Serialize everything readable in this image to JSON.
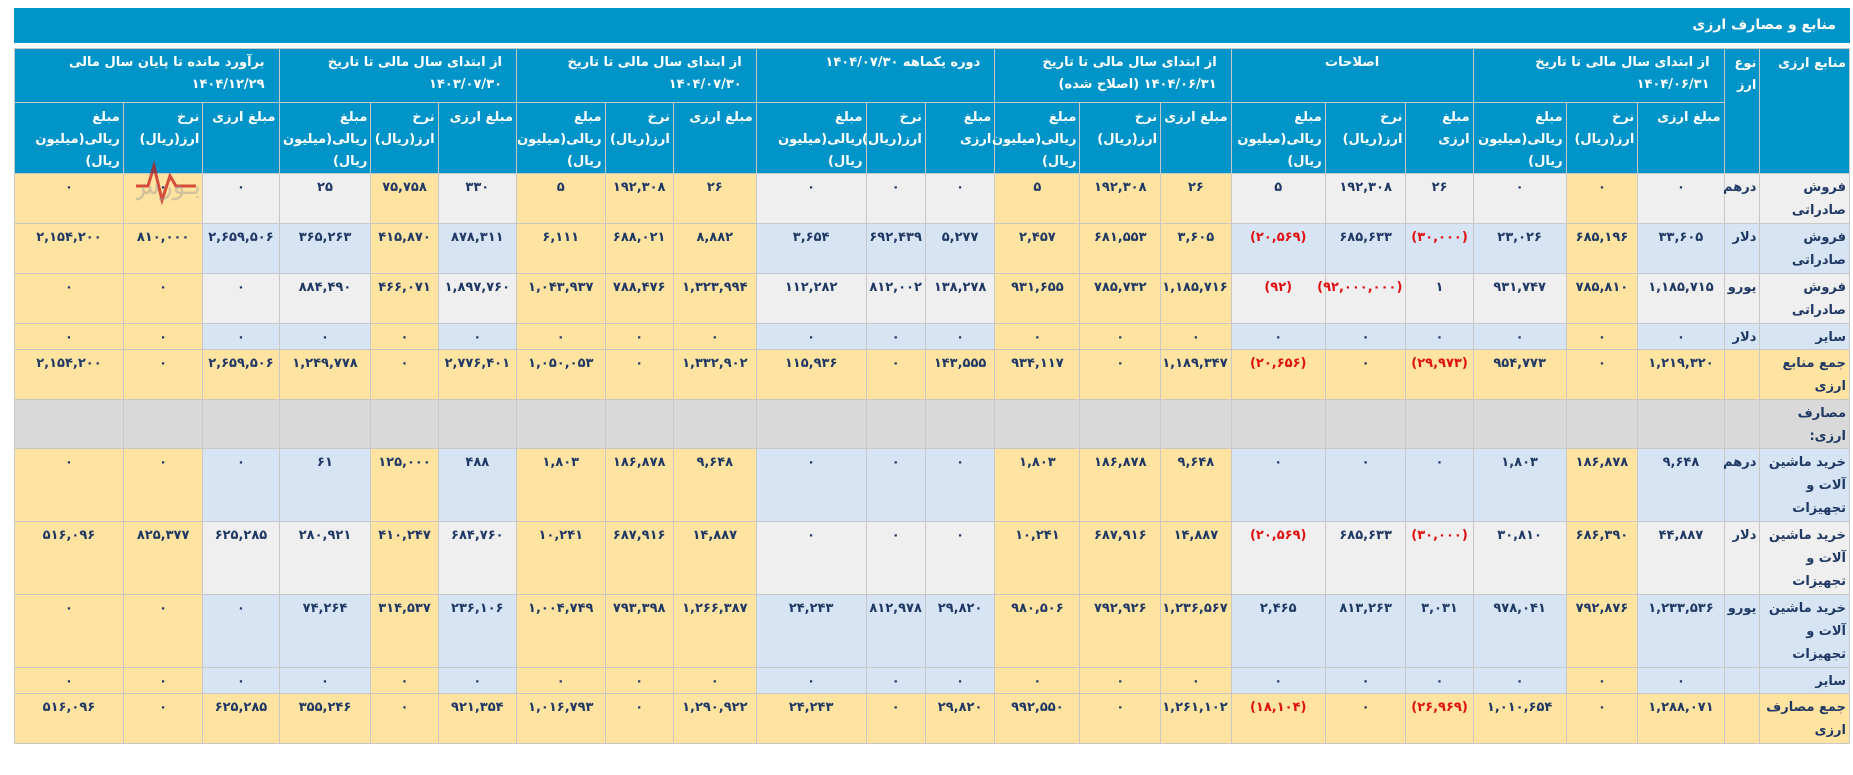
{
  "title": "منابع و مصارف ارزی",
  "headers": {
    "row_label": "منابع ارزی",
    "currency_type": "نوع ارز",
    "groups": [
      "از ابتدای سال مالی تا تاریخ ۱۴۰۴/۰۶/۳۱",
      "اصلاحات",
      "از ابتدای سال مالی تا تاریخ ۱۴۰۴/۰۶/۳۱ (اصلاح شده)",
      "دوره یکماهه ۱۴۰۴/۰۷/۳۰",
      "از ابتدای سال مالی تا تاریخ ۱۴۰۴/۰۷/۳۰",
      "از ابتدای سال مالی تا تاریخ ۱۴۰۳/۰۷/۳۰",
      "برآورد مانده تا پایان سال مالی ۱۴۰۴/۱۲/۲۹"
    ],
    "sub": [
      "مبلغ ارزی",
      "نرخ ارز(ریال)",
      "مبلغ ریالی(میلیون ریال)"
    ],
    "sub_alt": [
      "مبلغ ارزی",
      "نرخ ارز(ریال)",
      "مبلغ ریالی(میلیون ریال)"
    ]
  },
  "rows": [
    {
      "label": "فروش صادراتی",
      "type": "درهم",
      "style": "g",
      "values": [
        "۰",
        "۰",
        "۰",
        "۲۶",
        "۱۹۲,۳۰۸",
        "۵",
        "۲۶",
        "۱۹۲,۳۰۸",
        "۵",
        "۰",
        "۰",
        "۰",
        "۲۶",
        "۱۹۲,۳۰۸",
        "۵",
        "۳۳۰",
        "۷۵,۷۵۸",
        "۲۵",
        "۰",
        "۰",
        "۰"
      ]
    },
    {
      "label": "فروش صادراتی",
      "type": "دلار",
      "style": "b",
      "values": [
        "۳۳,۶۰۵",
        "۶۸۵,۱۹۶",
        "۲۳,۰۲۶",
        "(۳۰,۰۰۰)",
        "۶۸۵,۶۳۳",
        "(۲۰,۵۶۹)",
        "۳,۶۰۵",
        "۶۸۱,۵۵۳",
        "۲,۴۵۷",
        "۵,۲۷۷",
        "۶۹۲,۴۳۹",
        "۳,۶۵۴",
        "۸,۸۸۲",
        "۶۸۸,۰۲۱",
        "۶,۱۱۱",
        "۸۷۸,۳۱۱",
        "۴۱۵,۸۷۰",
        "۳۶۵,۲۶۳",
        "۲,۶۵۹,۵۰۶",
        "۸۱۰,۰۰۰",
        "۲,۱۵۴,۲۰۰"
      ]
    },
    {
      "label": "فروش صادراتی",
      "type": "یورو",
      "style": "g",
      "values": [
        "۱,۱۸۵,۷۱۵",
        "۷۸۵,۸۱۰",
        "۹۳۱,۷۴۷",
        "۱",
        "(۹۲,۰۰۰,۰۰۰)",
        "(۹۲)",
        "۱,۱۸۵,۷۱۶",
        "۷۸۵,۷۳۲",
        "۹۳۱,۶۵۵",
        "۱۳۸,۲۷۸",
        "۸۱۲,۰۰۲",
        "۱۱۲,۲۸۲",
        "۱,۳۲۳,۹۹۴",
        "۷۸۸,۴۷۶",
        "۱,۰۴۳,۹۳۷",
        "۱,۸۹۷,۷۶۰",
        "۴۶۶,۰۷۱",
        "۸۸۴,۴۹۰",
        "۰",
        "۰",
        "۰"
      ]
    },
    {
      "label": "سایر",
      "type": "دلار",
      "style": "b",
      "values": [
        "۰",
        "۰",
        "۰",
        "۰",
        "۰",
        "۰",
        "۰",
        "۰",
        "۰",
        "۰",
        "۰",
        "۰",
        "۰",
        "۰",
        "۰",
        "۰",
        "۰",
        "۰",
        "۰",
        "۰",
        "۰"
      ]
    },
    {
      "label": "جمع منابع ارزی",
      "type": "",
      "style": "y",
      "values": [
        "۱,۲۱۹,۳۲۰",
        "۰",
        "۹۵۴,۷۷۳",
        "(۲۹,۹۷۳)",
        "۰",
        "(۲۰,۶۵۶)",
        "۱,۱۸۹,۳۴۷",
        "۰",
        "۹۳۴,۱۱۷",
        "۱۴۳,۵۵۵",
        "۰",
        "۱۱۵,۹۳۶",
        "۱,۳۳۲,۹۰۲",
        "۰",
        "۱,۰۵۰,۰۵۳",
        "۲,۷۷۶,۴۰۱",
        "۰",
        "۱,۲۴۹,۷۷۸",
        "۲,۶۵۹,۵۰۶",
        "۰",
        "۲,۱۵۴,۲۰۰"
      ]
    },
    {
      "label": "مصارف ارزی:",
      "type": "",
      "style": "s",
      "values": []
    },
    {
      "label": "خرید ماشین آلات و تجهیزات",
      "type": "درهم",
      "style": "b",
      "values": [
        "۹,۶۴۸",
        "۱۸۶,۸۷۸",
        "۱,۸۰۳",
        "۰",
        "۰",
        "۰",
        "۹,۶۴۸",
        "۱۸۶,۸۷۸",
        "۱,۸۰۳",
        "۰",
        "۰",
        "۰",
        "۹,۶۴۸",
        "۱۸۶,۸۷۸",
        "۱,۸۰۳",
        "۴۸۸",
        "۱۲۵,۰۰۰",
        "۶۱",
        "۰",
        "۰",
        "۰"
      ]
    },
    {
      "label": "خرید ماشین آلات و تجهیزات",
      "type": "دلار",
      "style": "g",
      "values": [
        "۴۴,۸۸۷",
        "۶۸۶,۳۹۰",
        "۳۰,۸۱۰",
        "(۳۰,۰۰۰)",
        "۶۸۵,۶۳۳",
        "(۲۰,۵۶۹)",
        "۱۴,۸۸۷",
        "۶۸۷,۹۱۶",
        "۱۰,۲۴۱",
        "۰",
        "۰",
        "۰",
        "۱۴,۸۸۷",
        "۶۸۷,۹۱۶",
        "۱۰,۲۴۱",
        "۶۸۴,۷۶۰",
        "۴۱۰,۲۴۷",
        "۲۸۰,۹۲۱",
        "۶۲۵,۲۸۵",
        "۸۲۵,۳۷۷",
        "۵۱۶,۰۹۶"
      ]
    },
    {
      "label": "خرید ماشین آلات و تجهیزات",
      "type": "یورو",
      "style": "b",
      "values": [
        "۱,۲۳۳,۵۳۶",
        "۷۹۲,۸۷۶",
        "۹۷۸,۰۴۱",
        "۳,۰۳۱",
        "۸۱۳,۲۶۳",
        "۲,۴۶۵",
        "۱,۲۳۶,۵۶۷",
        "۷۹۲,۹۲۶",
        "۹۸۰,۵۰۶",
        "۲۹,۸۲۰",
        "۸۱۲,۹۷۸",
        "۲۴,۲۴۳",
        "۱,۲۶۶,۳۸۷",
        "۷۹۳,۳۹۸",
        "۱,۰۰۴,۷۴۹",
        "۲۳۶,۱۰۶",
        "۳۱۴,۵۳۷",
        "۷۴,۲۶۴",
        "۰",
        "۰",
        "۰"
      ]
    },
    {
      "label": "سایر",
      "type": "",
      "style": "b",
      "values": [
        "۰",
        "۰",
        "۰",
        "۰",
        "۰",
        "۰",
        "۰",
        "۰",
        "۰",
        "۰",
        "۰",
        "۰",
        "۰",
        "۰",
        "۰",
        "۰",
        "۰",
        "۰",
        "۰",
        "۰",
        "۰"
      ]
    },
    {
      "label": "جمع مصارف ارزی",
      "type": "",
      "style": "y",
      "values": [
        "۱,۲۸۸,۰۷۱",
        "۰",
        "۱,۰۱۰,۶۵۴",
        "(۲۶,۹۶۹)",
        "۰",
        "(۱۸,۱۰۴)",
        "۱,۲۶۱,۱۰۲",
        "۰",
        "۹۹۲,۵۵۰",
        "۲۹,۸۲۰",
        "۰",
        "۲۴,۲۴۳",
        "۱,۲۹۰,۹۲۲",
        "۰",
        "۱,۰۱۶,۷۹۳",
        "۹۲۱,۳۵۴",
        "۰",
        "۳۵۵,۲۴۶",
        "۶۲۵,۲۸۵",
        "۰",
        "۵۱۶,۰۹۶"
      ]
    }
  ],
  "colors": {
    "header": "#0094c8",
    "text": "#1f3864",
    "negative": "#e01010",
    "row_gray": "#efefef",
    "row_blue": "#d6e4f4",
    "row_yellow": "#ffe3a0"
  },
  "watermark": {
    "icon": "heartbeat-logo-icon",
    "text": "بـورس بان"
  }
}
